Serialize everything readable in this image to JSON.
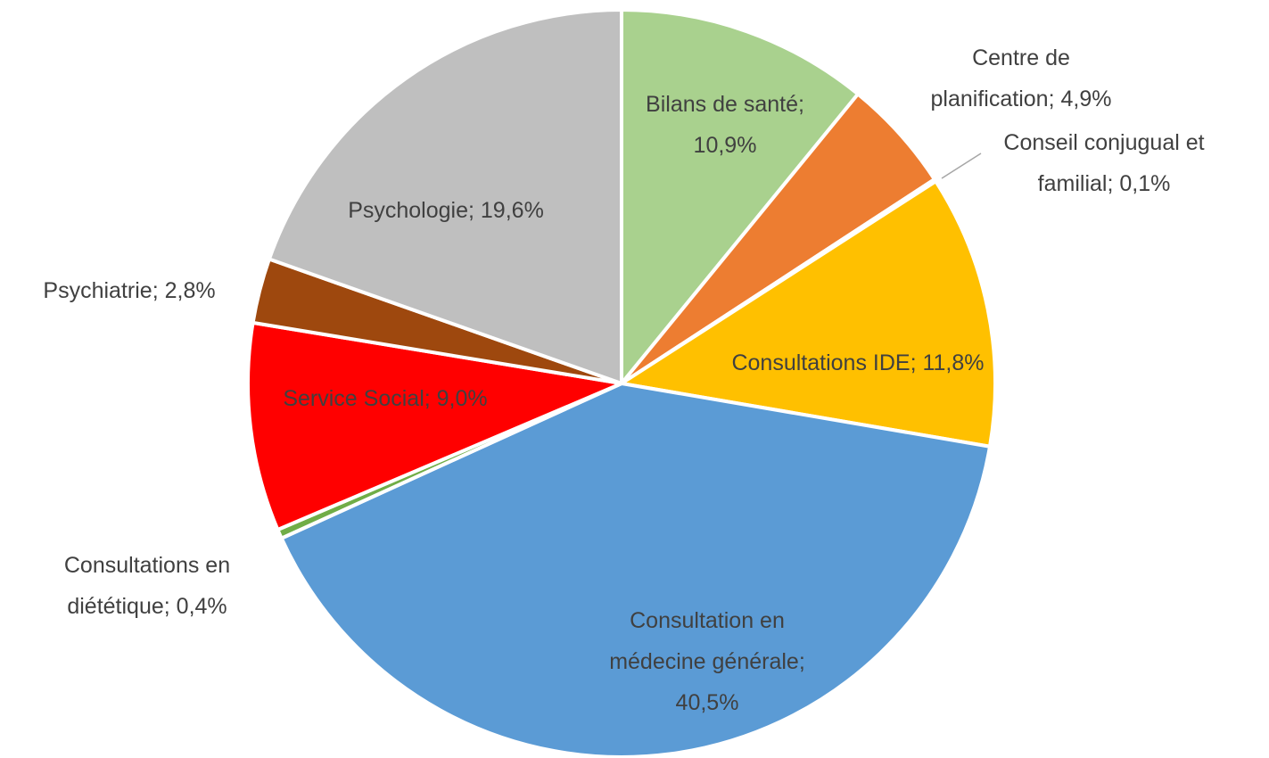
{
  "chart_data": {
    "type": "pie",
    "categories": [
      "Bilans de santé",
      "Centre de planification",
      "Conseil conjugual et familial",
      "Consultations IDE",
      "Consultation en médecine générale",
      "Consultations en diététique",
      "Service Social",
      "Psychiatrie",
      "Psychologie"
    ],
    "values": [
      10.9,
      4.9,
      0.1,
      11.8,
      40.5,
      0.4,
      9.0,
      2.8,
      19.6
    ],
    "value_labels": [
      "10,9%",
      "4,9%",
      "0,1%",
      "11,8%",
      "40,5%",
      "0,4%",
      "9,0%",
      "2,8%",
      "19,6%"
    ],
    "label_separator": ";",
    "colors": [
      "#a9d18e",
      "#ed7d31",
      "#a5a5a5",
      "#ffc000",
      "#5b9bd5",
      "#70ad47",
      "#ff0000",
      "#9e480e",
      "#bfbfbf"
    ]
  }
}
